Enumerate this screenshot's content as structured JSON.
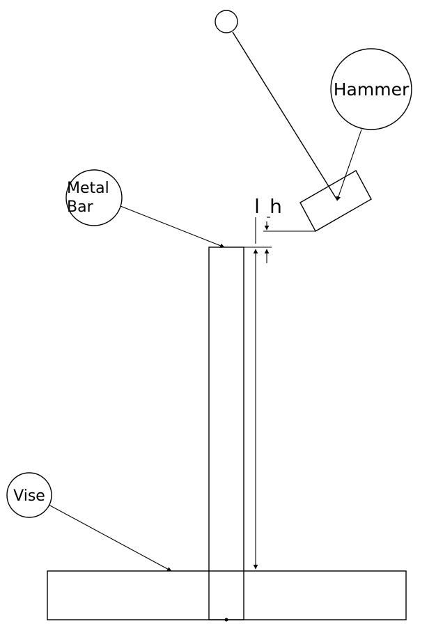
{
  "diagram": {
    "labels": {
      "hammer": "Hammer",
      "metal_bar_line1": "Metal",
      "metal_bar_line2": "Bar",
      "vise": "Vise",
      "dim_l": "l",
      "dim_h": "h"
    },
    "colors": {
      "stroke": "#000000",
      "background": "#ffffff"
    }
  }
}
